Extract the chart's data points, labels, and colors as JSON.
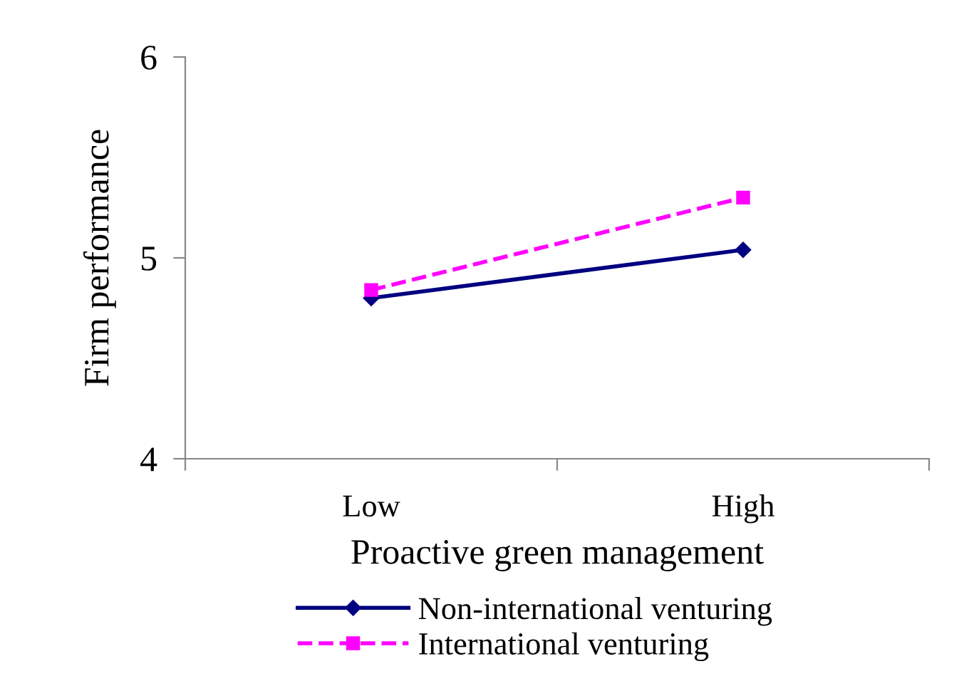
{
  "chart_data": {
    "type": "line",
    "xlabel": "Proactive green management",
    "ylabel": "Firm performance",
    "categories": [
      "Low",
      "High"
    ],
    "series": [
      {
        "name": "Non-international venturing",
        "color": "#000080",
        "values": [
          4.8,
          5.04
        ],
        "marker": "diamond",
        "line_style": "solid"
      },
      {
        "name": "International venturing",
        "color": "#ff00ff",
        "values": [
          4.84,
          5.3
        ],
        "marker": "square",
        "line_style": "dashed"
      }
    ],
    "ylim": [
      4,
      6
    ],
    "yticks": [
      4,
      5,
      6
    ],
    "grid": false,
    "legend": "bottom"
  }
}
